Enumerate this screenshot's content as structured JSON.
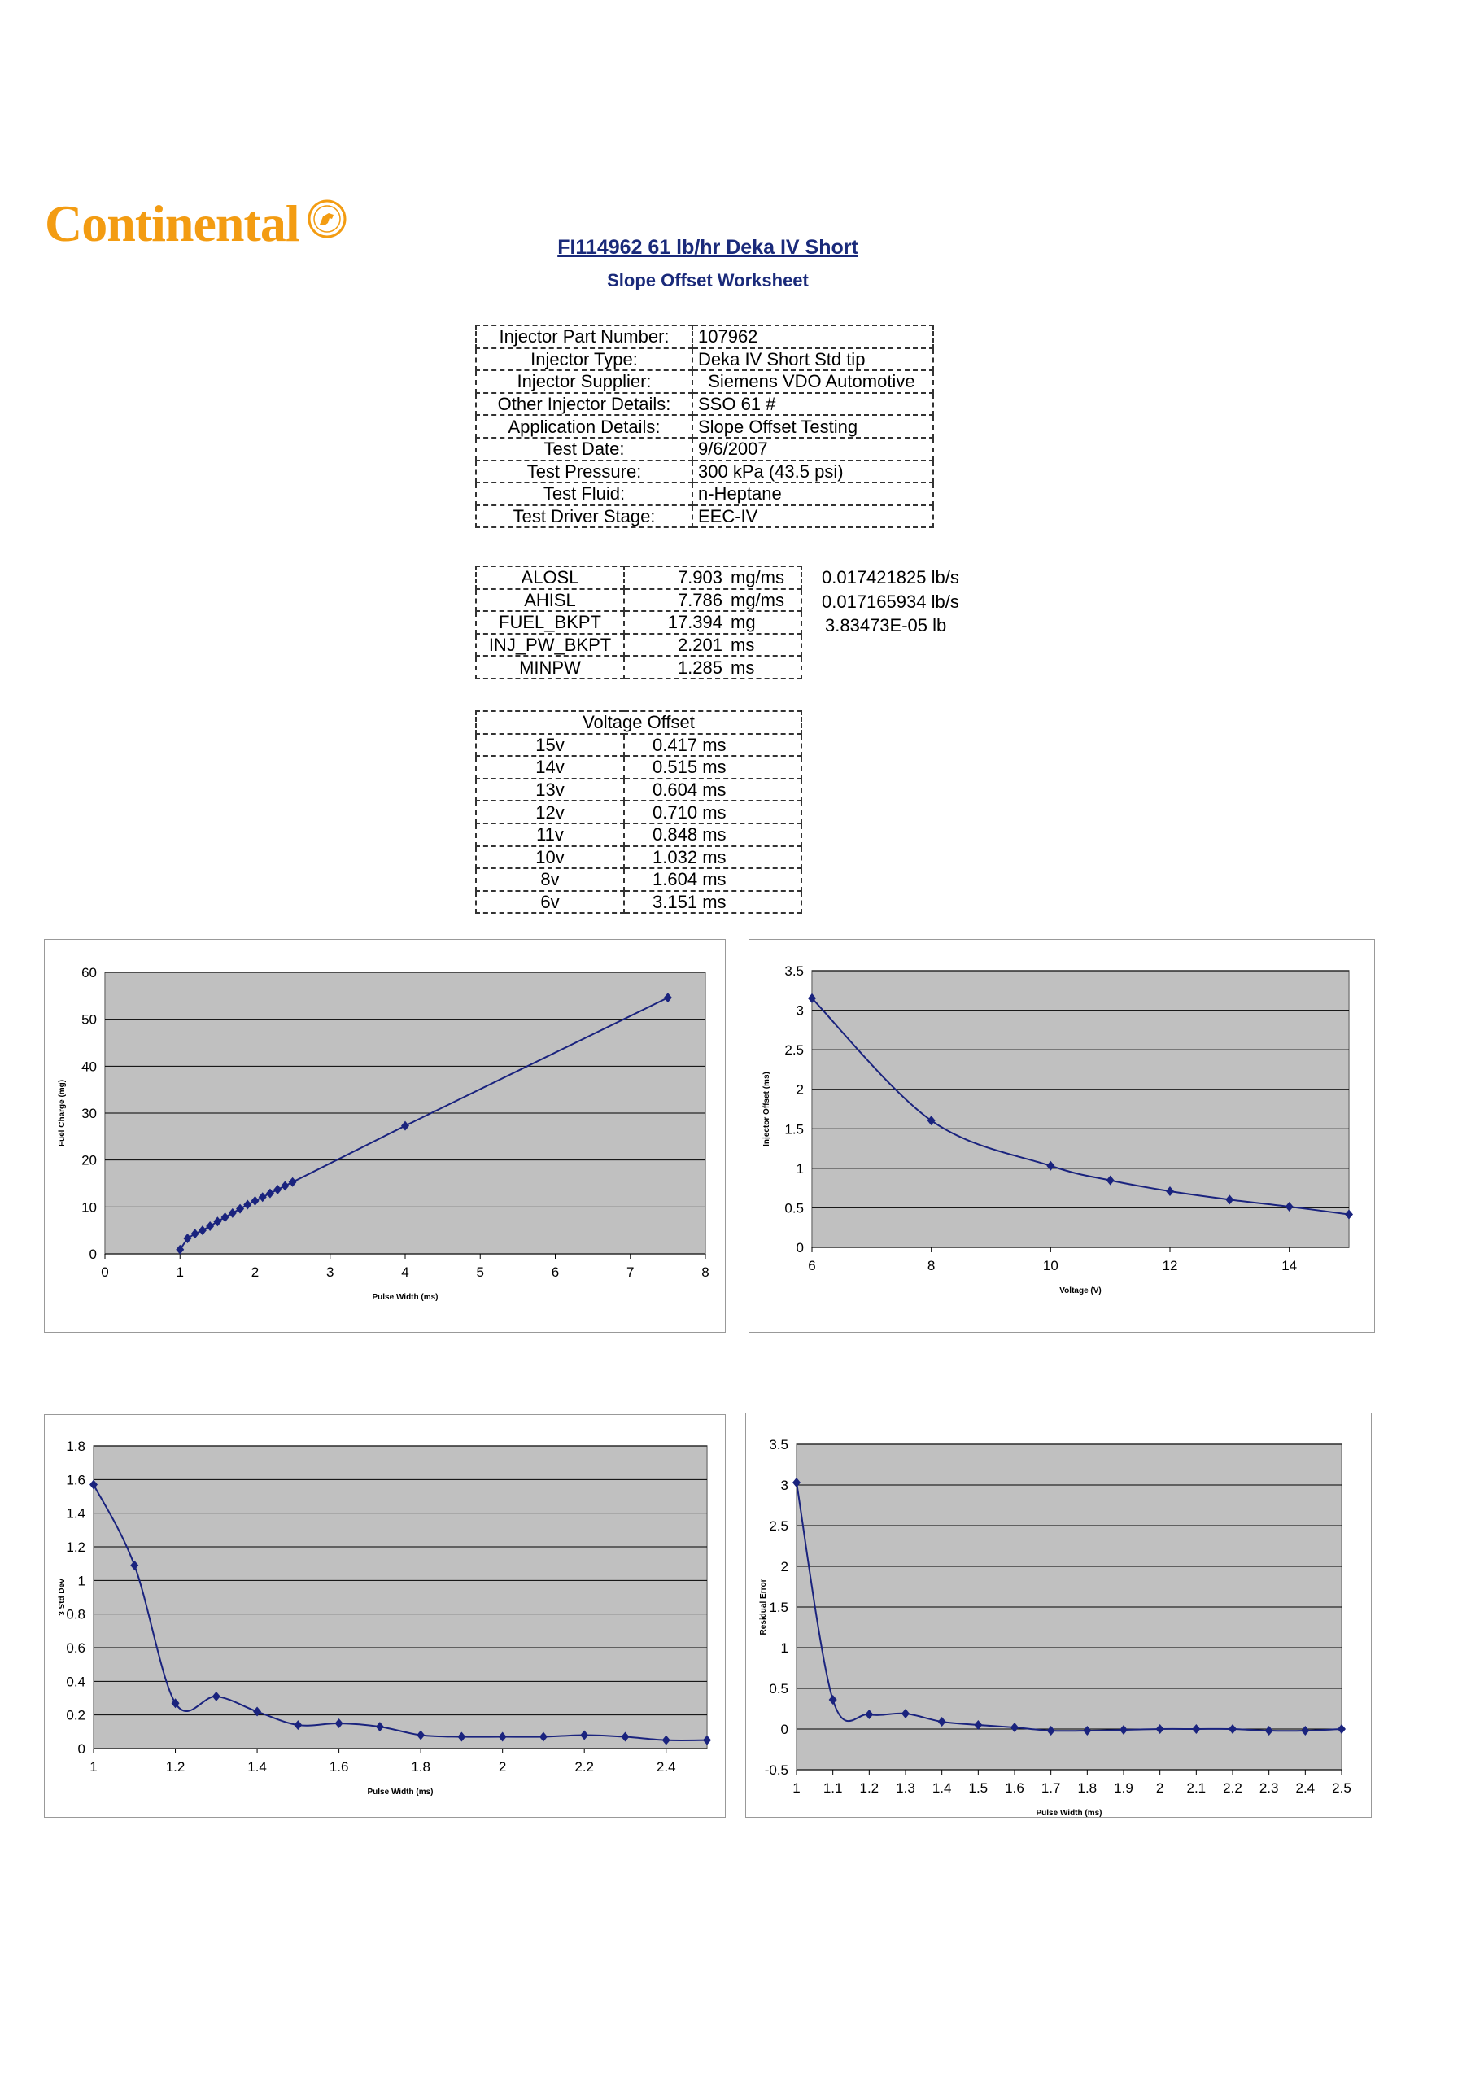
{
  "logo": {
    "text": "Continental",
    "icon": "continental-horse-seal"
  },
  "header": {
    "title": "FI114962 61 lb/hr Deka IV Short",
    "subtitle": "Slope Offset Worksheet"
  },
  "info_table": [
    {
      "label": "Injector Part Number:",
      "value": "107962"
    },
    {
      "label": "Injector Type:",
      "value": "Deka IV Short Std tip"
    },
    {
      "label": "Injector Supplier:",
      "value": "  Siemens VDO Automotive"
    },
    {
      "label": "Other Injector Details:",
      "value": "SSO 61 #"
    },
    {
      "label": "Application Details:",
      "value": "Slope Offset Testing"
    },
    {
      "label": "Test Date:",
      "value": "9/6/2007"
    },
    {
      "label": "Test Pressure:",
      "value": "300 kPa (43.5 psi)"
    },
    {
      "label": "Test Fluid:",
      "value": "n-Heptane"
    },
    {
      "label": "Test Driver Stage:",
      "value": "EEC-IV"
    }
  ],
  "params_table": [
    {
      "name": "ALOSL",
      "value": "7.903",
      "unit": "mg/ms",
      "extra": "0.017421825",
      "extra_unit": "lb/s"
    },
    {
      "name": "AHISL",
      "value": "7.786",
      "unit": "mg/ms",
      "extra": "0.017165934",
      "extra_unit": "lb/s"
    },
    {
      "name": "FUEL_BKPT",
      "value": "17.394",
      "unit": "mg",
      "extra": "3.83473E-05",
      "extra_unit": "lb"
    },
    {
      "name": "INJ_PW_BKPT",
      "value": "2.201",
      "unit": "ms",
      "extra": "",
      "extra_unit": ""
    },
    {
      "name": "MINPW",
      "value": "1.285",
      "unit": "ms",
      "extra": "",
      "extra_unit": ""
    }
  ],
  "voltage_table": {
    "heading": "Voltage Offset",
    "rows": [
      {
        "voltage": "15v",
        "value": "0.417",
        "unit": "ms"
      },
      {
        "voltage": "14v",
        "value": "0.515",
        "unit": "ms"
      },
      {
        "voltage": "13v",
        "value": "0.604",
        "unit": "ms"
      },
      {
        "voltage": "12v",
        "value": "0.710",
        "unit": "ms"
      },
      {
        "voltage": "11v",
        "value": "0.848",
        "unit": "ms"
      },
      {
        "voltage": "10v",
        "value": "1.032",
        "unit": "ms"
      },
      {
        "voltage": "8v",
        "value": "1.604",
        "unit": "ms"
      },
      {
        "voltage": "6v",
        "value": "3.151",
        "unit": "ms"
      }
    ]
  },
  "colors": {
    "series": "#1a237e",
    "plot_bg": "#c0c0c0",
    "grid": "#000000",
    "title": "#1a2a7a",
    "logo": "#f39c12"
  },
  "chart_data": [
    {
      "type": "line",
      "xlabel": "Pulse Width (ms)",
      "ylabel": "Fuel Charge (mg)",
      "xlim": [
        0,
        8
      ],
      "ylim": [
        0,
        60
      ],
      "xticks": [
        0,
        1,
        2,
        3,
        4,
        5,
        6,
        7,
        8
      ],
      "yticks": [
        0,
        10,
        20,
        30,
        40,
        50,
        60
      ],
      "x": [
        1.0,
        1.1,
        1.2,
        1.3,
        1.4,
        1.5,
        1.6,
        1.7,
        1.8,
        1.9,
        2.0,
        2.1,
        2.2,
        2.3,
        2.4,
        2.5,
        4.0,
        7.5
      ],
      "y": [
        0.9,
        3.3,
        4.3,
        5.0,
        5.9,
        6.9,
        7.8,
        8.7,
        9.6,
        10.5,
        11.3,
        12.1,
        12.9,
        13.7,
        14.5,
        15.3,
        27.3,
        54.6
      ]
    },
    {
      "type": "line",
      "xlabel": "Voltage (V)",
      "ylabel": "Injector Offset (ms)",
      "xlim": [
        6,
        15
      ],
      "ylim": [
        0,
        3.5
      ],
      "xticks": [
        6,
        8,
        10,
        12,
        14
      ],
      "yticks": [
        0,
        0.5,
        1,
        1.5,
        2,
        2.5,
        3,
        3.5
      ],
      "x": [
        6,
        8,
        10,
        11,
        12,
        13,
        14,
        15
      ],
      "y": [
        3.151,
        1.604,
        1.032,
        0.848,
        0.71,
        0.604,
        0.515,
        0.417
      ]
    },
    {
      "type": "line",
      "xlabel": "Pulse Width (ms)",
      "ylabel": "3 Std Dev",
      "xlim": [
        1,
        2.5
      ],
      "ylim": [
        0,
        1.8
      ],
      "xticks": [
        1,
        1.2,
        1.4,
        1.6,
        1.8,
        2,
        2.2,
        2.4
      ],
      "yticks": [
        0,
        0.2,
        0.4,
        0.6,
        0.8,
        1,
        1.2,
        1.4,
        1.6,
        1.8
      ],
      "x": [
        1.0,
        1.1,
        1.2,
        1.3,
        1.4,
        1.5,
        1.6,
        1.7,
        1.8,
        1.9,
        2.0,
        2.1,
        2.2,
        2.3,
        2.4,
        2.5
      ],
      "y": [
        1.57,
        1.09,
        0.27,
        0.31,
        0.22,
        0.14,
        0.15,
        0.13,
        0.08,
        0.07,
        0.07,
        0.07,
        0.08,
        0.07,
        0.05,
        0.05
      ]
    },
    {
      "type": "line",
      "xlabel": "Pulse Width (ms)",
      "ylabel": "Residual Error",
      "xlim": [
        1,
        2.5
      ],
      "ylim": [
        -0.5,
        3.5
      ],
      "xticks": [
        1,
        1.1,
        1.2,
        1.3,
        1.4,
        1.5,
        1.6,
        1.7,
        1.8,
        1.9,
        2,
        2.1,
        2.2,
        2.3,
        2.4,
        2.5
      ],
      "yticks": [
        -0.5,
        0,
        0.5,
        1,
        1.5,
        2,
        2.5,
        3,
        3.5
      ],
      "x": [
        1.0,
        1.1,
        1.2,
        1.3,
        1.4,
        1.5,
        1.6,
        1.7,
        1.8,
        1.9,
        2.0,
        2.1,
        2.2,
        2.3,
        2.4,
        2.5
      ],
      "y": [
        3.03,
        0.36,
        0.18,
        0.19,
        0.09,
        0.05,
        0.02,
        -0.02,
        -0.02,
        -0.01,
        0.0,
        0.0,
        0.0,
        -0.02,
        -0.02,
        0.0
      ]
    }
  ]
}
